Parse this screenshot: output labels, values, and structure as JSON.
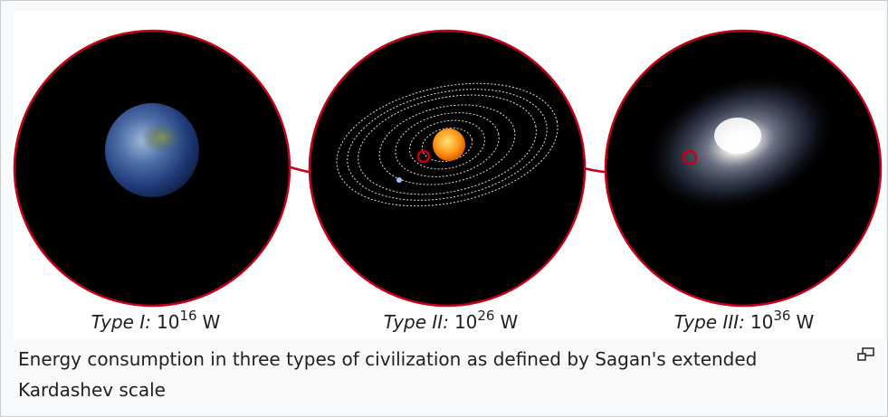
{
  "figure": {
    "items": [
      {
        "type": "Type I:",
        "base": "10",
        "exponent": "16",
        "unit": "W"
      },
      {
        "type": "Type II:",
        "base": "10",
        "exponent": "26",
        "unit": "W"
      },
      {
        "type": "Type III:",
        "base": "10",
        "exponent": "36",
        "unit": "W"
      }
    ],
    "caption": "Energy consumption in three types of civilization as defined by Sagan's extended Kardashev scale"
  }
}
